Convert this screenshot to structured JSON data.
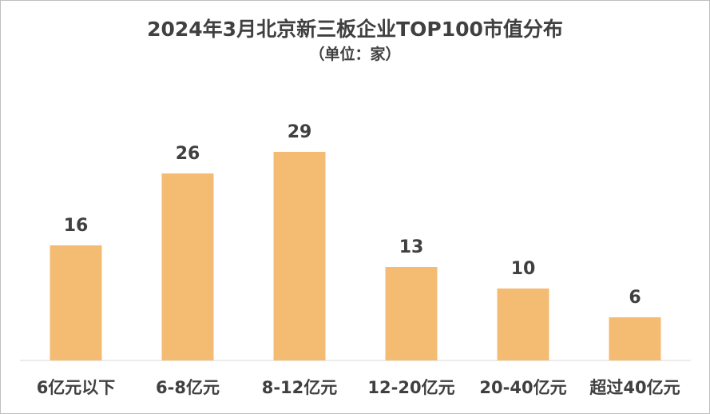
{
  "chart_data": {
    "type": "bar",
    "title": "2024年3月北京新三板企业TOP100市值分布",
    "subtitle": "（单位：家）",
    "categories": [
      "6亿元以下",
      "6-8亿元",
      "8-12亿元",
      "12-20亿元",
      "20-40亿元",
      "超过40亿元"
    ],
    "values": [
      16,
      26,
      29,
      13,
      10,
      6
    ],
    "bar_color": "#F4BC73",
    "grid": false,
    "legend": "none"
  }
}
